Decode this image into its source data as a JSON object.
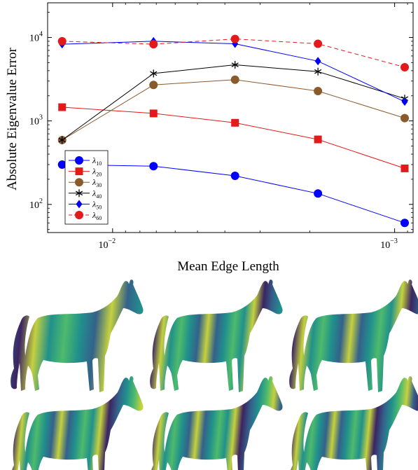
{
  "chart_data": {
    "type": "line",
    "xlabel": "Mean Edge Length",
    "ylabel": "Absolute Eigenvalue Error",
    "xscale": "log",
    "yscale": "log",
    "x_reversed": true,
    "xlim": [
      0.017,
      0.00086
    ],
    "ylim": [
      46,
      26000
    ],
    "x": [
      0.0151,
      0.00716,
      0.00368,
      0.00187,
      0.000921
    ],
    "x_ticks": [
      {
        "value": 0.01,
        "label": "10",
        "exp": "−2"
      },
      {
        "value": 0.001,
        "label": "10",
        "exp": "−3"
      }
    ],
    "y_ticks": [
      {
        "value": 100,
        "label": "10",
        "exp": "2"
      },
      {
        "value": 1000,
        "label": "10",
        "exp": "3"
      },
      {
        "value": 10000,
        "label": "10",
        "exp": "4"
      }
    ],
    "grid": false,
    "legend_position": "bottom-left",
    "series": [
      {
        "name": "λ10",
        "sub": "10",
        "color": "#0000ff",
        "marker": "circle",
        "dashed": false,
        "values": [
          300,
          287,
          220,
          135,
          60
        ]
      },
      {
        "name": "λ20",
        "sub": "20",
        "color": "#e31a1c",
        "marker": "square",
        "dashed": false,
        "values": [
          1460,
          1230,
          950,
          600,
          270
        ]
      },
      {
        "name": "λ30",
        "sub": "30",
        "color": "#8b5a2b",
        "marker": "circle",
        "dashed": false,
        "values": [
          590,
          2700,
          3120,
          2280,
          1080
        ]
      },
      {
        "name": "λ40",
        "sub": "40",
        "color": "#000000",
        "marker": "star",
        "dashed": false,
        "values": [
          590,
          3700,
          4700,
          3900,
          1850
        ]
      },
      {
        "name": "λ50",
        "sub": "50",
        "color": "#0000ff",
        "marker": "diamond",
        "dashed": false,
        "values": [
          8300,
          9000,
          8400,
          5200,
          1700
        ]
      },
      {
        "name": "λ60",
        "sub": "60",
        "color": "#e31a1c",
        "marker": "circle",
        "dashed": true,
        "values": [
          9000,
          8300,
          9600,
          8400,
          4400
        ]
      }
    ]
  },
  "images": {
    "caption_free": true,
    "horse_panels": [
      {
        "pattern": "mode-low",
        "stripes": 9
      },
      {
        "pattern": "mode-mid",
        "stripes": 15
      },
      {
        "pattern": "mode-mid",
        "stripes": 14
      },
      {
        "pattern": "mode-high",
        "stripes": 17
      },
      {
        "pattern": "mode-high",
        "stripes": 18
      },
      {
        "pattern": "mode-high",
        "stripes": 19
      }
    ],
    "colormap": [
      "#440154",
      "#3b528b",
      "#21918c",
      "#5ec962",
      "#fde725"
    ]
  }
}
